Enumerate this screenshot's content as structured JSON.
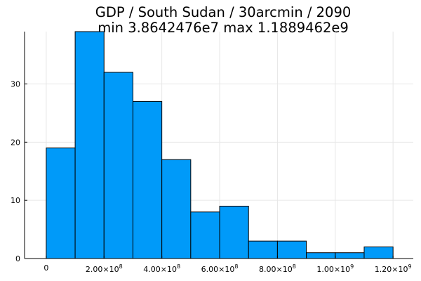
{
  "chart_data": {
    "type": "bar",
    "title_lines": [
      "GDP / South Sudan / 30arcmin / 2090",
      "min 3.8642476e7  max 1.1889462e9"
    ],
    "bin_edges": [
      0,
      100000000,
      200000000,
      300000000,
      400000000,
      500000000,
      600000000,
      700000000,
      800000000,
      900000000,
      1000000000,
      1100000000,
      1200000000
    ],
    "values": [
      19,
      39,
      32,
      27,
      17,
      8,
      9,
      3,
      3,
      1,
      1,
      2
    ],
    "bar_color": "#009af9",
    "xlim": [
      -75000000,
      1270000000
    ],
    "ylim": [
      0,
      39
    ],
    "x_ticks": [
      {
        "value": 0,
        "mant": "0",
        "exp": ""
      },
      {
        "value": 200000000,
        "mant": "2.00×10",
        "exp": "8"
      },
      {
        "value": 400000000,
        "mant": "4.00×10",
        "exp": "8"
      },
      {
        "value": 600000000,
        "mant": "6.00×10",
        "exp": "8"
      },
      {
        "value": 800000000,
        "mant": "8.00×10",
        "exp": "8"
      },
      {
        "value": 1000000000,
        "mant": "1.00×10",
        "exp": "9"
      },
      {
        "value": 1200000000,
        "mant": "1.20×10",
        "exp": "9"
      }
    ],
    "y_ticks": [
      {
        "value": 0,
        "label": "0"
      },
      {
        "value": 10,
        "label": "10"
      },
      {
        "value": 20,
        "label": "20"
      },
      {
        "value": 30,
        "label": "30"
      }
    ],
    "grid": true,
    "legend": false
  }
}
